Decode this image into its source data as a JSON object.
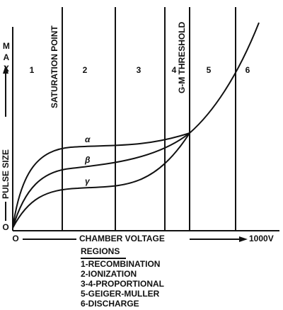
{
  "y_axis": {
    "max_label": "MAX",
    "label": "PULSE SIZE",
    "origin": "O"
  },
  "x_axis": {
    "origin": "O",
    "label": "CHAMBER VOLTAGE",
    "end": "1000V"
  },
  "regions": [
    "1",
    "2",
    "3",
    "4",
    "5",
    "6"
  ],
  "markers": [
    "SATURATION POINT",
    "G-M THRESHOLD"
  ],
  "curves": [
    "α",
    "β",
    "γ"
  ],
  "legend": {
    "title": "REGIONS",
    "items": [
      "1-RECOMBINATION",
      "2-IONIZATION",
      "3-4-PROPORTIONAL",
      "5-GEIGER-MULLER",
      "6-DISCHARGE"
    ]
  }
}
